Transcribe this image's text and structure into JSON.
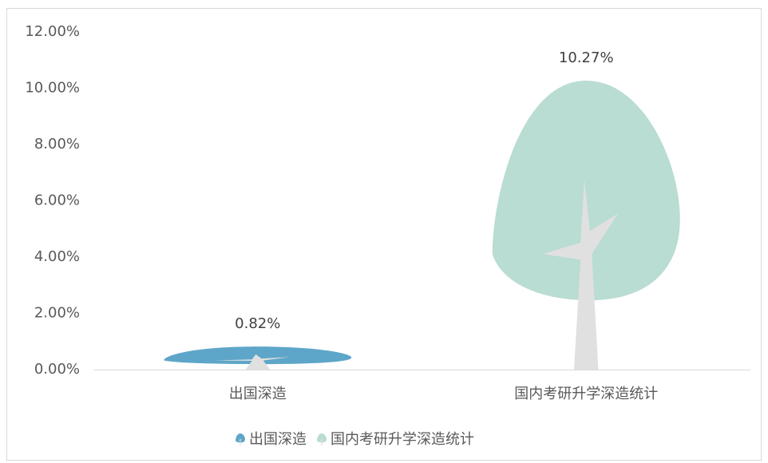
{
  "chart_data": {
    "type": "pictograph",
    "categories": [
      "出国深造",
      "国内考研升学深造统计"
    ],
    "values": [
      0.82,
      10.27
    ],
    "value_labels": [
      "0.82%",
      "10.27%"
    ],
    "colors": [
      "#5ea6c9",
      "#b9dcd3"
    ],
    "ylim": [
      0,
      12
    ],
    "yticks": [
      {
        "value": 0,
        "label": "0.00%"
      },
      {
        "value": 2,
        "label": "2.00%"
      },
      {
        "value": 4,
        "label": "4.00%"
      },
      {
        "value": 6,
        "label": "6.00%"
      },
      {
        "value": 8,
        "label": "8.00%"
      },
      {
        "value": 10,
        "label": "10.00%"
      },
      {
        "value": 12,
        "label": "12.00%"
      }
    ],
    "grid": false
  }
}
